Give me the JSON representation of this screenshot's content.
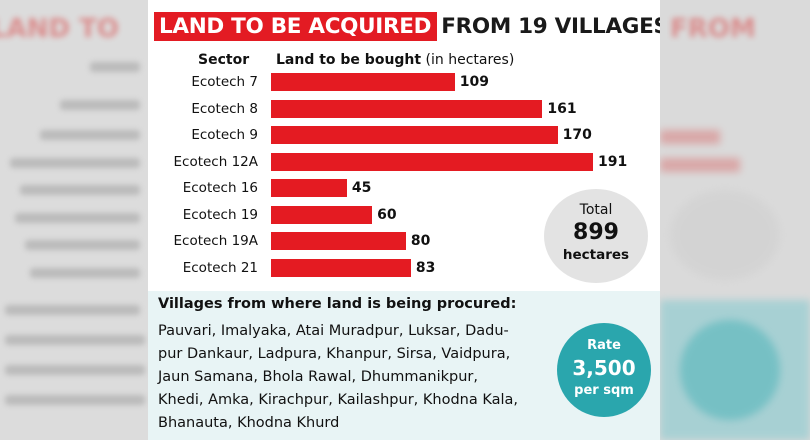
{
  "title": {
    "highlight": "LAND TO BE ACQUIRED",
    "rest": "FROM 19 VILLAGES"
  },
  "columns": {
    "sector": "Sector",
    "amount": "Land to be bought",
    "unit": "(in hectares)"
  },
  "chart_data": {
    "type": "bar",
    "orientation": "horizontal",
    "title": "LAND TO BE ACQUIRED FROM 19 VILLAGES",
    "xlabel": "Land to be bought (in hectares)",
    "ylabel": "Sector",
    "categories": [
      "Ecotech 7",
      "Ecotech 8",
      "Ecotech 9",
      "Ecotech 12A",
      "Ecotech 16",
      "Ecotech 19",
      "Ecotech 19A",
      "Ecotech 21"
    ],
    "values": [
      109,
      161,
      170,
      191,
      45,
      60,
      80,
      83
    ],
    "xlim": [
      0,
      191
    ],
    "bar_color": "#e41b22"
  },
  "total": {
    "label": "Total",
    "value": "899",
    "unit": "hectares"
  },
  "villages": {
    "heading": "Villages from where land is being procured:",
    "lines": [
      "Pauvari, Imalyaka, Atai Muradpur, Luksar, Dadu-",
      "pur Dankaur, Ladpura, Khanpur, Sirsa, Vaidpura,",
      "Jaun Samana, Bhola Rawal, Dhummanikpur,",
      "Khedi, Amka, Kirachpur, Kailashpur, Khodna Kala,",
      "Bhanauta, Khodna Khurd"
    ]
  },
  "rate": {
    "label": "Rate",
    "value": "3,500",
    "unit": "per sqm"
  },
  "colors": {
    "accent_red": "#e31b23",
    "teal": "#2aa6ad",
    "total_circle": "#e3e3e3"
  }
}
